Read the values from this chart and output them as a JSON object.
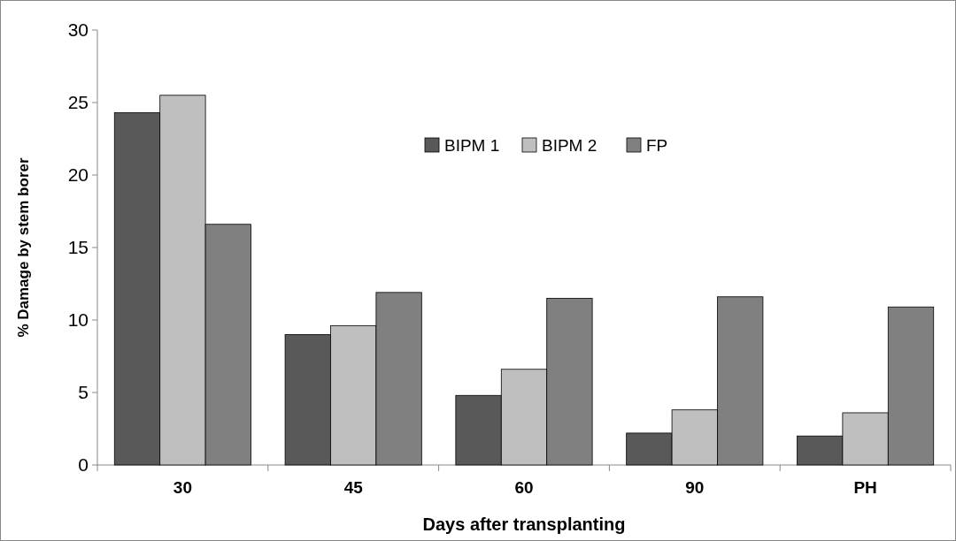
{
  "chart_data": {
    "type": "bar",
    "xlabel": "Days after transplanting",
    "ylabel": "% Damage by stem borer",
    "categories": [
      "30",
      "45",
      "60",
      "90",
      "PH"
    ],
    "series": [
      {
        "name": "BIPM 1",
        "color": "#595959",
        "values": [
          24.3,
          9.0,
          4.8,
          2.2,
          2.0
        ]
      },
      {
        "name": "BIPM 2",
        "color": "#bfbfbf",
        "values": [
          25.5,
          9.6,
          6.6,
          3.8,
          3.6
        ]
      },
      {
        "name": "FP",
        "color": "#808080",
        "values": [
          16.6,
          11.9,
          11.5,
          11.6,
          10.9
        ]
      }
    ],
    "ylim": [
      0,
      30
    ],
    "yticks": [
      0,
      5,
      10,
      15,
      20,
      25,
      30
    ],
    "grid": false,
    "legend": "top right"
  }
}
